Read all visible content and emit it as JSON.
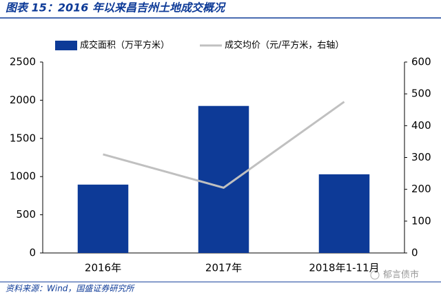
{
  "chart_data": {
    "type": "bar",
    "title": "图表 15：2016 年以来昌吉州土地成交概况",
    "source": "资料来源：Wind，国盛证券研究所",
    "watermark": "郁言债市",
    "categories": [
      "2016年",
      "2017年",
      "2018年1-11月"
    ],
    "series": [
      {
        "name": "成交面积（万平方米）",
        "type": "bar",
        "color": "#0d3a97",
        "values": [
          895,
          1925,
          1030
        ]
      },
      {
        "name": "成交均价（元/平方米，右轴）",
        "type": "line",
        "axis": "y2",
        "color": "#c0c0c0",
        "values": [
          310,
          205,
          475
        ]
      }
    ],
    "ylim": [
      0,
      2500
    ],
    "yticks": [
      0,
      500,
      1000,
      1500,
      2000,
      2500
    ],
    "y2lim": [
      0,
      600
    ],
    "y2ticks": [
      0,
      100,
      200,
      300,
      400,
      500,
      600
    ],
    "grid": false,
    "legend": "top"
  }
}
